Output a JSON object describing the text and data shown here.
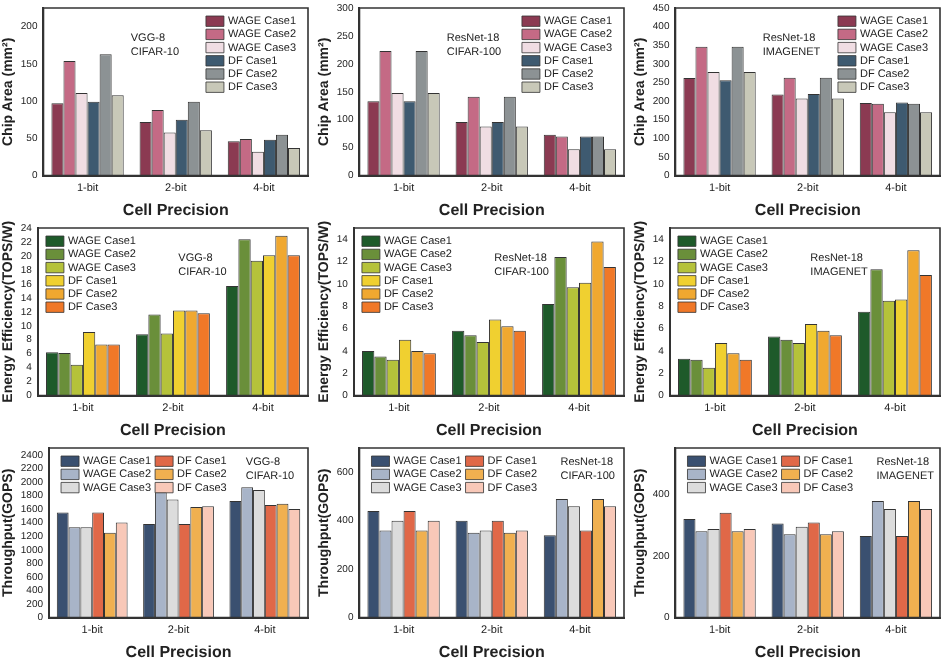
{
  "chart_data": [
    {
      "type": "bar",
      "xlabel": "Cell Precision",
      "ylabel": "Chip Area (mm²)",
      "categories": [
        "1-bit",
        "2-bit",
        "4-bit"
      ],
      "ylim": [
        0,
        225
      ],
      "yticks": [
        0,
        50,
        100,
        150,
        200
      ],
      "legend": "top right",
      "annotations": [
        "VGG-8",
        "CIFAR-10"
      ],
      "grid": false,
      "series": [
        {
          "name": "WAGE Case1",
          "color": "#8b3a52",
          "values": [
            97,
            72,
            46
          ]
        },
        {
          "name": "WAGE Case2",
          "color": "#c46a85",
          "values": [
            154,
            88,
            49
          ]
        },
        {
          "name": "WAGE Case3",
          "color": "#f0dde3",
          "values": [
            111,
            58,
            32
          ]
        },
        {
          "name": "DF Case1",
          "color": "#3e5a70",
          "values": [
            99,
            75,
            48
          ]
        },
        {
          "name": "DF Case2",
          "color": "#8c9294",
          "values": [
            163,
            99,
            55
          ]
        },
        {
          "name": "DF Case3",
          "color": "#c8c8b8",
          "values": [
            108,
            61,
            37
          ]
        }
      ]
    },
    {
      "type": "bar",
      "xlabel": "Cell Precision",
      "ylabel": "Chip Area (mm²)",
      "categories": [
        "1-bit",
        "2-bit",
        "4-bit"
      ],
      "ylim": [
        0,
        300
      ],
      "yticks": [
        0,
        50,
        100,
        150,
        200,
        250,
        300
      ],
      "legend": "top right",
      "annotations": [
        "ResNet-18",
        "CIFAR-100"
      ],
      "grid": false,
      "series": [
        {
          "name": "WAGE Case1",
          "color": "#8b3a52",
          "values": [
            133,
            96,
            73
          ]
        },
        {
          "name": "WAGE Case2",
          "color": "#c46a85",
          "values": [
            223,
            141,
            70
          ]
        },
        {
          "name": "WAGE Case3",
          "color": "#f0dde3",
          "values": [
            148,
            88,
            47
          ]
        },
        {
          "name": "DF Case1",
          "color": "#3e5a70",
          "values": [
            133,
            96,
            70
          ]
        },
        {
          "name": "DF Case2",
          "color": "#8c9294",
          "values": [
            223,
            141,
            70
          ]
        },
        {
          "name": "DF Case3",
          "color": "#c8c8b8",
          "values": [
            148,
            88,
            47
          ]
        }
      ]
    },
    {
      "type": "bar",
      "xlabel": "Cell Precision",
      "ylabel": "Chip Area (mm²)",
      "categories": [
        "1-bit",
        "2-bit",
        "4-bit"
      ],
      "ylim": [
        0,
        450
      ],
      "yticks": [
        0,
        50,
        100,
        150,
        200,
        250,
        300,
        350,
        400,
        450
      ],
      "legend": "top right",
      "annotations": [
        "ResNet-18",
        "IMAGENET"
      ],
      "grid": false,
      "series": [
        {
          "name": "WAGE Case1",
          "color": "#8b3a52",
          "values": [
            262,
            218,
            195
          ]
        },
        {
          "name": "WAGE Case2",
          "color": "#c46a85",
          "values": [
            346,
            263,
            193
          ]
        },
        {
          "name": "WAGE Case3",
          "color": "#f0dde3",
          "values": [
            278,
            207,
            170
          ]
        },
        {
          "name": "DF Case1",
          "color": "#3e5a70",
          "values": [
            256,
            219,
            196
          ]
        },
        {
          "name": "DF Case2",
          "color": "#8c9294",
          "values": [
            346,
            263,
            193
          ]
        },
        {
          "name": "DF Case3",
          "color": "#c8c8b8",
          "values": [
            278,
            207,
            170
          ]
        }
      ]
    },
    {
      "type": "bar",
      "xlabel": "Cell Precision",
      "ylabel": "Energy Efficiency(TOPS/W)",
      "categories": [
        "1-bit",
        "2-bit",
        "4-bit"
      ],
      "ylim": [
        0,
        24
      ],
      "yticks": [
        0,
        2,
        4,
        6,
        8,
        10,
        12,
        14,
        16,
        18,
        20,
        22,
        24
      ],
      "legend": "top left",
      "annotations": [
        "VGG-8",
        "CIFAR-10"
      ],
      "grid": false,
      "series": [
        {
          "name": "WAGE Case1",
          "color": "#1e5a2a",
          "values": [
            6.2,
            8.8,
            15.7
          ]
        },
        {
          "name": "WAGE Case2",
          "color": "#6a8f3a",
          "values": [
            6.1,
            11.6,
            22.4
          ]
        },
        {
          "name": "WAGE Case3",
          "color": "#b5c23a",
          "values": [
            4.4,
            8.9,
            19.3
          ]
        },
        {
          "name": "DF Case1",
          "color": "#f0d030",
          "values": [
            9.1,
            12.2,
            20.1
          ]
        },
        {
          "name": "DF Case2",
          "color": "#f0a830",
          "values": [
            7.3,
            12.2,
            22.9
          ]
        },
        {
          "name": "DF Case3",
          "color": "#f07828",
          "values": [
            7.3,
            11.8,
            20.1
          ]
        }
      ]
    },
    {
      "type": "bar",
      "xlabel": "Cell Precision",
      "ylabel": "Energy Efficiency(TOPS/W)",
      "categories": [
        "1-bit",
        "2-bit",
        "4-bit"
      ],
      "ylim": [
        0,
        15
      ],
      "yticks": [
        0,
        2,
        4,
        6,
        8,
        10,
        12,
        14
      ],
      "legend": "top left",
      "annotations": [
        "ResNet-18",
        "CIFAR-100"
      ],
      "grid": false,
      "series": [
        {
          "name": "WAGE Case1",
          "color": "#1e5a2a",
          "values": [
            4.0,
            5.8,
            8.2
          ]
        },
        {
          "name": "WAGE Case2",
          "color": "#6a8f3a",
          "values": [
            3.5,
            5.4,
            12.4
          ]
        },
        {
          "name": "WAGE Case3",
          "color": "#b5c23a",
          "values": [
            3.2,
            4.8,
            9.7
          ]
        },
        {
          "name": "DF Case1",
          "color": "#f0d030",
          "values": [
            5.0,
            6.8,
            10.1
          ]
        },
        {
          "name": "DF Case2",
          "color": "#f0a830",
          "values": [
            4.0,
            6.2,
            13.8
          ]
        },
        {
          "name": "DF Case3",
          "color": "#f07828",
          "values": [
            3.8,
            5.8,
            11.5
          ]
        }
      ]
    },
    {
      "type": "bar",
      "xlabel": "Cell Precision",
      "ylabel": "Energy Efficiency(TOPS/W)",
      "categories": [
        "1-bit",
        "2-bit",
        "4-bit"
      ],
      "ylim": [
        0,
        15
      ],
      "yticks": [
        0,
        2,
        4,
        6,
        8,
        10,
        12,
        14
      ],
      "legend": "top left",
      "annotations": [
        "ResNet-18",
        "IMAGENET"
      ],
      "grid": false,
      "series": [
        {
          "name": "WAGE Case1",
          "color": "#1e5a2a",
          "values": [
            3.3,
            5.3,
            7.5
          ]
        },
        {
          "name": "WAGE Case2",
          "color": "#6a8f3a",
          "values": [
            3.2,
            5.0,
            11.3
          ]
        },
        {
          "name": "WAGE Case3",
          "color": "#b5c23a",
          "values": [
            2.5,
            4.7,
            8.5
          ]
        },
        {
          "name": "DF Case1",
          "color": "#f0d030",
          "values": [
            4.7,
            6.4,
            8.6
          ]
        },
        {
          "name": "DF Case2",
          "color": "#f0a830",
          "values": [
            3.8,
            5.8,
            13.0
          ]
        },
        {
          "name": "DF Case3",
          "color": "#f07828",
          "values": [
            3.2,
            5.4,
            10.8
          ]
        }
      ]
    },
    {
      "type": "bar",
      "xlabel": "Cell Precision",
      "ylabel": "Throughput(GOPS)",
      "categories": [
        "1-bit",
        "2-bit",
        "4-bit"
      ],
      "ylim": [
        0,
        2500
      ],
      "yticks": [
        0,
        200,
        400,
        600,
        800,
        1000,
        1200,
        1400,
        1600,
        1800,
        2000,
        2200,
        2400
      ],
      "legend": "top",
      "annotations": [
        "VGG-8",
        "CIFAR-10"
      ],
      "grid": false,
      "series": [
        {
          "name": "WAGE Case1",
          "color": "#3a5070",
          "values": [
            1550,
            1380,
            1720
          ]
        },
        {
          "name": "WAGE Case2",
          "color": "#a8b4c8",
          "values": [
            1330,
            1850,
            1920
          ]
        },
        {
          "name": "WAGE Case3",
          "color": "#dcdcdc",
          "values": [
            1330,
            1740,
            1880
          ]
        },
        {
          "name": "DF Case1",
          "color": "#e06848",
          "values": [
            1550,
            1380,
            1660
          ]
        },
        {
          "name": "DF Case2",
          "color": "#f0b050",
          "values": [
            1250,
            1630,
            1680
          ]
        },
        {
          "name": "DF Case3",
          "color": "#f8c8b8",
          "values": [
            1400,
            1640,
            1600
          ]
        }
      ]
    },
    {
      "type": "bar",
      "xlabel": "Cell Precision",
      "ylabel": "Throughput(GOPS)",
      "categories": [
        "1-bit",
        "2-bit",
        "4-bit"
      ],
      "ylim": [
        0,
        700
      ],
      "yticks": [
        0,
        200,
        400,
        600
      ],
      "legend": "top",
      "annotations": [
        "ResNet-18",
        "CIFAR-100"
      ],
      "grid": false,
      "series": [
        {
          "name": "WAGE Case1",
          "color": "#3a5070",
          "values": [
            440,
            400,
            340
          ]
        },
        {
          "name": "WAGE Case2",
          "color": "#a8b4c8",
          "values": [
            360,
            350,
            490
          ]
        },
        {
          "name": "WAGE Case3",
          "color": "#dcdcdc",
          "values": [
            400,
            360,
            460
          ]
        },
        {
          "name": "DF Case1",
          "color": "#e06848",
          "values": [
            440,
            400,
            360
          ]
        },
        {
          "name": "DF Case2",
          "color": "#f0b050",
          "values": [
            360,
            350,
            490
          ]
        },
        {
          "name": "DF Case3",
          "color": "#f8c8b8",
          "values": [
            400,
            360,
            460
          ]
        }
      ]
    },
    {
      "type": "bar",
      "xlabel": "Cell Precision",
      "ylabel": "Throughput(GOPS)",
      "categories": [
        "1-bit",
        "2-bit",
        "4-bit"
      ],
      "ylim": [
        0,
        550
      ],
      "yticks": [
        0,
        200,
        400
      ],
      "legend": "top",
      "annotations": [
        "ResNet-18",
        "IMAGENET"
      ],
      "grid": false,
      "series": [
        {
          "name": "WAGE Case1",
          "color": "#3a5070",
          "values": [
            320,
            305,
            265
          ]
        },
        {
          "name": "WAGE Case2",
          "color": "#a8b4c8",
          "values": [
            280,
            270,
            378
          ]
        },
        {
          "name": "WAGE Case3",
          "color": "#dcdcdc",
          "values": [
            287,
            295,
            352
          ]
        },
        {
          "name": "DF Case1",
          "color": "#e06848",
          "values": [
            340,
            308,
            265
          ]
        },
        {
          "name": "DF Case2",
          "color": "#f0b050",
          "values": [
            280,
            270,
            378
          ]
        },
        {
          "name": "DF Case3",
          "color": "#f8c8b8",
          "values": [
            287,
            280,
            352
          ]
        }
      ]
    }
  ]
}
